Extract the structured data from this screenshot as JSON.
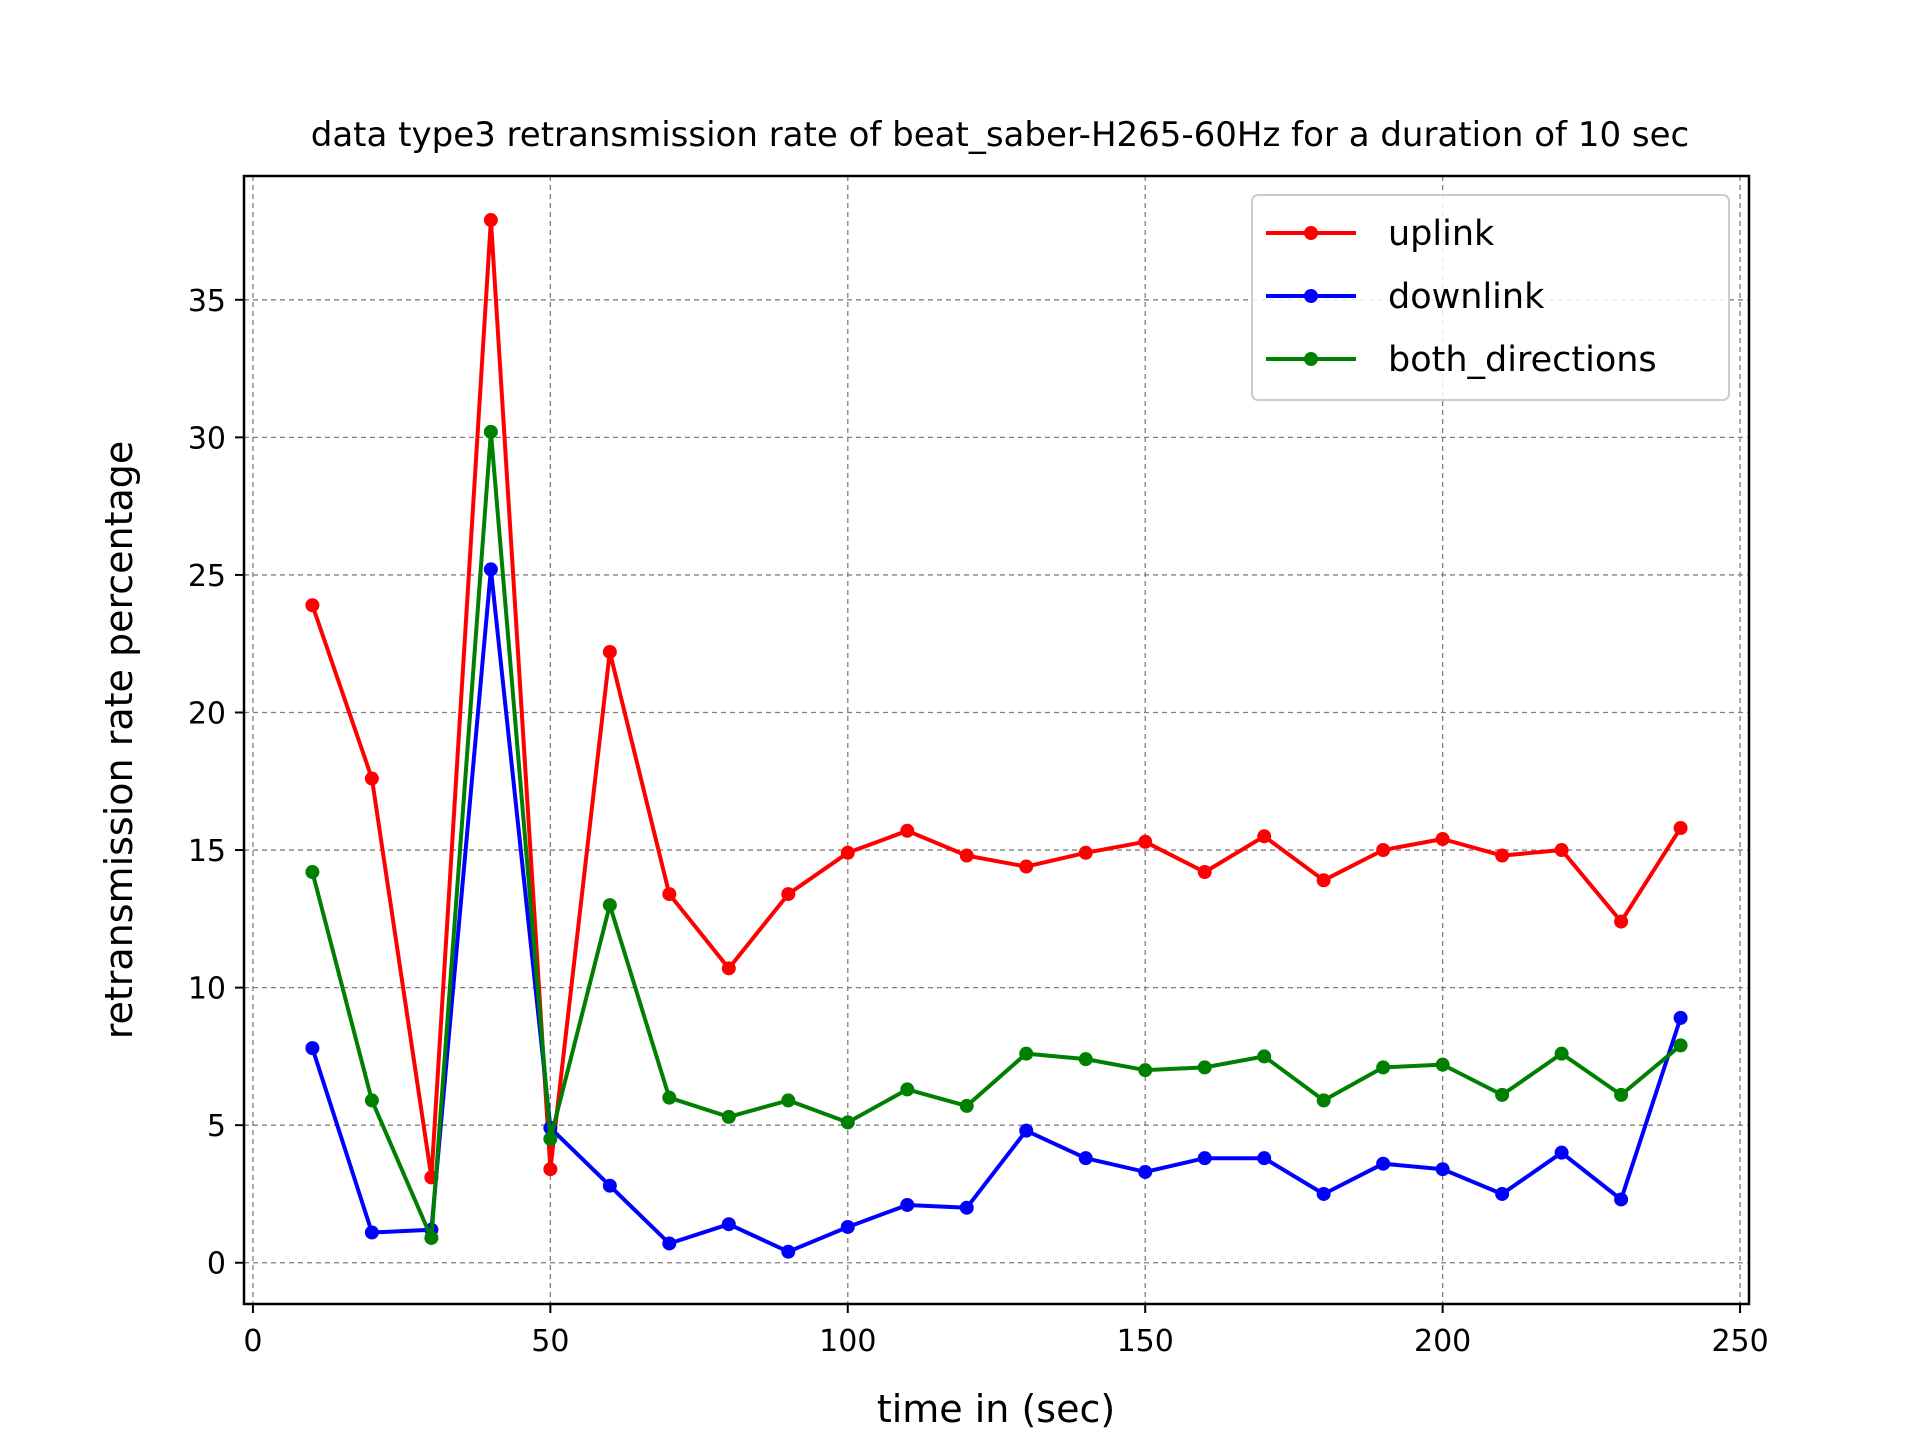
{
  "chart_data": {
    "type": "line",
    "title": "data type3 retransmission rate of beat_saber-H265-60Hz for a duration of 10 sec",
    "xlabel": "time in (sec)",
    "ylabel": "retransmission rate percentage",
    "xlim": [
      -1.5,
      251.5
    ],
    "ylim": [
      -1.5,
      39.5
    ],
    "xticks": [
      0,
      50,
      100,
      150,
      200,
      250
    ],
    "yticks": [
      0,
      5,
      10,
      15,
      20,
      25,
      30,
      35
    ],
    "grid": true,
    "legend_position": "top-right",
    "x": [
      10,
      20,
      30,
      40,
      50,
      60,
      70,
      80,
      90,
      100,
      110,
      120,
      130,
      140,
      150,
      160,
      170,
      180,
      190,
      200,
      210,
      220,
      230,
      240
    ],
    "series": [
      {
        "name": "uplink",
        "color": "#ff0000",
        "values": [
          23.9,
          17.6,
          3.1,
          37.9,
          3.4,
          22.2,
          13.4,
          10.7,
          13.4,
          14.9,
          15.7,
          14.8,
          14.4,
          14.9,
          15.3,
          14.2,
          15.5,
          13.9,
          15.0,
          15.4,
          14.8,
          15.0,
          12.4,
          15.8
        ]
      },
      {
        "name": "downlink",
        "color": "#0000ff",
        "values": [
          7.8,
          1.1,
          1.2,
          25.2,
          4.9,
          2.8,
          0.7,
          1.4,
          0.4,
          1.3,
          2.1,
          2.0,
          4.8,
          3.8,
          3.3,
          3.8,
          3.8,
          2.5,
          3.6,
          3.4,
          2.5,
          4.0,
          2.3,
          8.9
        ]
      },
      {
        "name": "both_directions",
        "color": "#008000",
        "values": [
          14.2,
          5.9,
          0.9,
          30.2,
          4.5,
          13.0,
          6.0,
          5.3,
          5.9,
          5.1,
          6.3,
          5.7,
          7.6,
          7.4,
          7.0,
          7.1,
          7.5,
          5.9,
          7.1,
          7.2,
          6.1,
          7.6,
          6.1,
          7.9
        ]
      }
    ]
  }
}
